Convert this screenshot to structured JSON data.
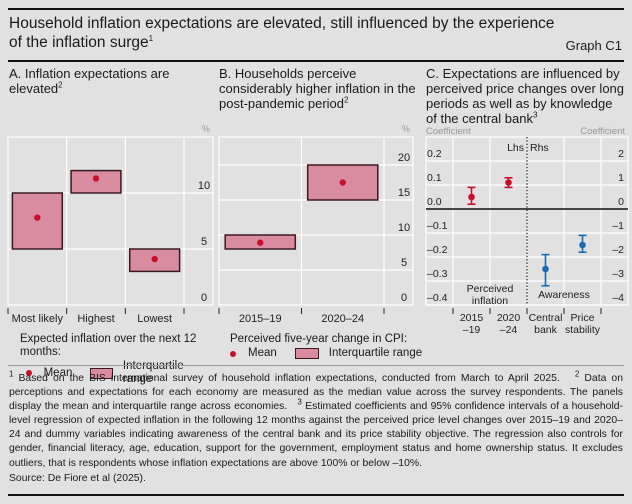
{
  "header": {
    "title": "Household inflation expectations are elevated, still influenced by the experience of the inflation surge",
    "title_sup": "1",
    "graph_id": "Graph C1"
  },
  "colors": {
    "box_fill": "#d98ca0",
    "box_stroke": "#3a1a20",
    "mean_red": "#c8102e",
    "coef_red": "#c8102e",
    "coef_blue": "#1a6bb5",
    "grid": "#ffffff"
  },
  "chart_data": [
    {
      "id": "A",
      "type": "box-range",
      "title": "A. Inflation expectations are elevated",
      "title_sup": "2",
      "unit_label": "%",
      "ylim": [
        0,
        15
      ],
      "yticks": [
        0,
        5,
        10
      ],
      "categories": [
        "Most likely",
        "Highest",
        "Lowest"
      ],
      "iqr_low": [
        5,
        10,
        3
      ],
      "iqr_high": [
        10,
        12,
        5
      ],
      "mean": [
        7.8,
        11.3,
        4.1
      ],
      "legend": {
        "heading": "Expected inflation over the next 12 months:",
        "mean_label": "Mean",
        "range_label": "Interquartile range"
      }
    },
    {
      "id": "B",
      "type": "box-range",
      "title": "B. Households perceive considerably higher inflation in the post-pandemic period",
      "title_sup": "2",
      "unit_label": "%",
      "ylim": [
        0,
        24
      ],
      "yticks": [
        0,
        5,
        10,
        15,
        20
      ],
      "categories": [
        "2015–19",
        "2020–24"
      ],
      "iqr_low": [
        8,
        15
      ],
      "iqr_high": [
        10,
        20
      ],
      "mean": [
        8.9,
        17.5
      ],
      "legend": {
        "heading": "Perceived five-year change in CPI:",
        "mean_label": "Mean",
        "range_label": "Interquartile range"
      }
    },
    {
      "id": "C",
      "type": "errorbar",
      "title": "C. Expectations are influenced by perceived price changes over long periods as well as by knowledge of the central bank",
      "title_sup": "3",
      "left_axis_label": "Coefficient",
      "right_axis_label": "Coefficient",
      "lhs_label": "Lhs",
      "rhs_label": "Rhs",
      "ylim_left": [
        -0.4,
        0.3
      ],
      "yticks_left": [
        "0.2",
        "0.1",
        "0.0",
        "–0.1",
        "–0.2",
        "–0.3",
        "–0.4"
      ],
      "yticks_left_values": [
        0.2,
        0.1,
        0.0,
        -0.1,
        -0.2,
        -0.3,
        -0.4
      ],
      "ylim_right": [
        -4,
        3
      ],
      "yticks_right": [
        "2",
        "1",
        "0",
        "–1",
        "–2",
        "–3",
        "–4"
      ],
      "group_labels": [
        "Perceived inflation",
        "Awareness"
      ],
      "categories": [
        "2015 –19",
        "2020 –24",
        "Central bank",
        "Price stability"
      ],
      "series": [
        {
          "name": "Perceived inflation",
          "axis": "left",
          "color": "red",
          "points": [
            {
              "category": "2015 –19",
              "coef": 0.05,
              "ci_low": 0.02,
              "ci_high": 0.09
            },
            {
              "category": "2020 –24",
              "coef": 0.11,
              "ci_low": 0.09,
              "ci_high": 0.13
            }
          ]
        },
        {
          "name": "Awareness",
          "axis": "right",
          "color": "blue",
          "points": [
            {
              "category": "Central bank",
              "coef": -2.5,
              "ci_low": -3.2,
              "ci_high": -1.9
            },
            {
              "category": "Price stability",
              "coef": -1.5,
              "ci_low": -1.8,
              "ci_high": -1.1
            }
          ]
        }
      ]
    }
  ],
  "footnotes": {
    "text": "Based on the BIS international survey of household inflation expectations, conducted from March to April 2025.",
    "n1": "1",
    "n2": "2",
    "text2": "Data on perceptions and expectations for each economy are measured as the median value across the survey respondents. The panels display the mean and interquartile range across economies.",
    "n3": "3",
    "text3": "Estimated coefficients and 95% confidence intervals of a household-level regression of expected inflation in the following 12 months against the perceived price level changes over 2015–19 and 2020–24 and dummy variables indicating awareness of the central bank and its price stability objective. The regression also controls for gender, financial literacy, age, education, support for the government, employment status and home ownership status. It excludes outliers, that is respondents whose inflation expectations are above 100% or below –10%."
  },
  "source": "Source: De Fiore et al (2025)."
}
